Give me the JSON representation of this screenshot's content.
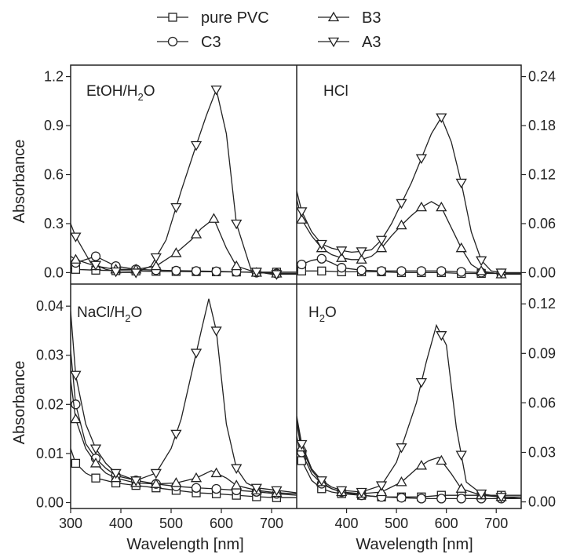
{
  "legend": {
    "items": [
      {
        "label": "pure PVC",
        "marker": "square"
      },
      {
        "label": "B3",
        "marker": "triangle-up"
      },
      {
        "label": "C3",
        "marker": "circle"
      },
      {
        "label": "A3",
        "marker": "triangle-down"
      }
    ]
  },
  "chart_data": [
    {
      "type": "line",
      "panel": "top-left",
      "label": "EtOH/H2O",
      "xlabel": "",
      "ylabel": "Absorbance",
      "xlim": [
        300,
        750
      ],
      "ylim": [
        -0.07,
        1.27
      ],
      "yticks": [
        0.0,
        0.3,
        0.6,
        0.9,
        1.2
      ],
      "ytick_labels": [
        "0.0",
        "0.3",
        "0.6",
        "0.9",
        "1.2"
      ],
      "yaxis_side": "left",
      "series": [
        {
          "name": "pure PVC",
          "marker": "square",
          "x": [
            300,
            310,
            350,
            390,
            430,
            470,
            510,
            550,
            590,
            630,
            670,
            710,
            750
          ],
          "y": [
            0.025,
            0.02,
            0.015,
            0.012,
            0.01,
            0.008,
            0.007,
            0.006,
            0.005,
            0.004,
            0.003,
            0.003,
            0.003
          ],
          "markers_x": [
            310,
            350,
            390,
            430,
            470,
            510,
            550,
            590,
            630,
            670,
            710
          ]
        },
        {
          "name": "C3",
          "marker": "circle",
          "x": [
            300,
            310,
            330,
            350,
            370,
            390,
            430,
            470,
            510,
            550,
            590,
            630,
            670,
            710,
            750
          ],
          "y": [
            0.05,
            0.06,
            0.08,
            0.1,
            0.07,
            0.04,
            0.02,
            0.015,
            0.012,
            0.01,
            0.008,
            0.005,
            0.0,
            -0.005,
            -0.005
          ],
          "markers_x": [
            310,
            350,
            390,
            430,
            470,
            510,
            550,
            590,
            630,
            670,
            710
          ]
        },
        {
          "name": "B3",
          "marker": "triangle-up",
          "x": [
            300,
            310,
            350,
            390,
            430,
            470,
            510,
            540,
            560,
            585,
            610,
            630,
            670,
            710,
            750
          ],
          "y": [
            0.1,
            0.08,
            0.04,
            0.02,
            0.02,
            0.04,
            0.12,
            0.2,
            0.27,
            0.33,
            0.15,
            0.04,
            0.0,
            -0.005,
            -0.005
          ],
          "markers_x": [
            310,
            350,
            390,
            430,
            470,
            510,
            550,
            585,
            630,
            670,
            710
          ]
        },
        {
          "name": "A3",
          "marker": "triangle-down",
          "x": [
            300,
            310,
            340,
            370,
            400,
            430,
            460,
            490,
            520,
            550,
            570,
            590,
            610,
            630,
            660,
            700,
            750
          ],
          "y": [
            0.3,
            0.22,
            0.06,
            0.02,
            0.0,
            0.0,
            0.04,
            0.2,
            0.5,
            0.78,
            0.96,
            1.12,
            0.85,
            0.3,
            0.01,
            -0.01,
            -0.01
          ],
          "markers_x": [
            310,
            350,
            390,
            430,
            470,
            510,
            550,
            590,
            630,
            670,
            710
          ]
        }
      ]
    },
    {
      "type": "line",
      "panel": "top-right",
      "label": "HCl",
      "xlabel": "",
      "ylabel": "",
      "xlim": [
        300,
        750
      ],
      "ylim": [
        -0.014,
        0.254
      ],
      "yticks": [
        0.0,
        0.06,
        0.12,
        0.18,
        0.24
      ],
      "ytick_labels": [
        "0.00",
        "0.06",
        "0.12",
        "0.18",
        "0.24"
      ],
      "yaxis_side": "right",
      "series": [
        {
          "name": "pure PVC",
          "marker": "square",
          "x": [
            300,
            310,
            350,
            390,
            430,
            470,
            510,
            550,
            590,
            630,
            670,
            710,
            750
          ],
          "y": [
            0.003,
            0.002,
            0.002,
            0.001,
            0.001,
            0.001,
            0.0,
            0.0,
            0.0,
            -0.001,
            -0.001,
            -0.001,
            -0.001
          ],
          "markers_x": [
            310,
            350,
            390,
            430,
            470,
            510,
            550,
            590,
            630,
            670,
            710
          ]
        },
        {
          "name": "C3",
          "marker": "circle",
          "x": [
            300,
            310,
            330,
            350,
            370,
            390,
            430,
            470,
            510,
            550,
            590,
            630,
            670,
            710,
            750
          ],
          "y": [
            0.005,
            0.01,
            0.015,
            0.017,
            0.012,
            0.006,
            0.003,
            0.002,
            0.002,
            0.002,
            0.002,
            0.001,
            0.0,
            -0.001,
            -0.001
          ],
          "markers_x": [
            310,
            350,
            390,
            430,
            470,
            510,
            550,
            590,
            630,
            670,
            710
          ]
        },
        {
          "name": "B3",
          "marker": "triangle-up",
          "x": [
            300,
            310,
            330,
            350,
            370,
            390,
            410,
            430,
            450,
            470,
            490,
            510,
            530,
            550,
            570,
            590,
            610,
            630,
            650,
            670,
            690,
            710,
            750
          ],
          "y": [
            0.09,
            0.065,
            0.045,
            0.03,
            0.022,
            0.018,
            0.016,
            0.016,
            0.02,
            0.03,
            0.045,
            0.058,
            0.07,
            0.08,
            0.087,
            0.08,
            0.055,
            0.03,
            0.01,
            0.002,
            0.0,
            -0.002,
            -0.002
          ],
          "markers_x": [
            310,
            350,
            390,
            430,
            470,
            510,
            550,
            590,
            630,
            670,
            710
          ]
        },
        {
          "name": "A3",
          "marker": "triangle-down",
          "x": [
            300,
            310,
            330,
            350,
            370,
            390,
            410,
            430,
            450,
            470,
            490,
            510,
            530,
            550,
            570,
            590,
            610,
            630,
            650,
            670,
            690,
            710,
            750
          ],
          "y": [
            0.1,
            0.075,
            0.05,
            0.035,
            0.03,
            0.027,
            0.025,
            0.026,
            0.028,
            0.04,
            0.06,
            0.085,
            0.11,
            0.14,
            0.17,
            0.19,
            0.16,
            0.11,
            0.05,
            0.015,
            0.002,
            0.0,
            0.0
          ],
          "markers_x": [
            310,
            350,
            390,
            430,
            470,
            510,
            550,
            590,
            630,
            670,
            710
          ]
        }
      ]
    },
    {
      "type": "line",
      "panel": "bottom-left",
      "label": "NaCl/H2O",
      "xlabel": "Wavelength [nm]",
      "ylabel": "Absorbance",
      "xlim": [
        300,
        750
      ],
      "xticks": [
        300,
        400,
        500,
        600,
        700
      ],
      "ylim": [
        -0.0012,
        0.0445
      ],
      "yticks": [
        0.0,
        0.01,
        0.02,
        0.03,
        0.04
      ],
      "ytick_labels": [
        "0.00",
        "0.01",
        "0.02",
        "0.03",
        "0.04"
      ],
      "yaxis_side": "left",
      "series": [
        {
          "name": "pure PVC",
          "marker": "square",
          "x": [
            300,
            310,
            330,
            350,
            370,
            390,
            430,
            470,
            510,
            550,
            590,
            630,
            670,
            710,
            750
          ],
          "y": [
            0.011,
            0.008,
            0.006,
            0.005,
            0.0045,
            0.004,
            0.0035,
            0.003,
            0.0025,
            0.002,
            0.0018,
            0.0015,
            0.0012,
            0.001,
            0.001
          ],
          "markers_x": [
            310,
            350,
            390,
            430,
            470,
            510,
            550,
            590,
            630,
            670,
            710
          ]
        },
        {
          "name": "C3",
          "marker": "circle",
          "x": [
            300,
            310,
            330,
            350,
            370,
            390,
            430,
            470,
            510,
            550,
            590,
            630,
            670,
            710,
            750
          ],
          "y": [
            0.031,
            0.02,
            0.012,
            0.009,
            0.007,
            0.0055,
            0.0045,
            0.0038,
            0.0033,
            0.003,
            0.0028,
            0.0025,
            0.0022,
            0.0018,
            0.0015
          ],
          "markers_x": [
            310,
            350,
            390,
            430,
            470,
            510,
            550,
            590,
            630,
            670,
            710
          ]
        },
        {
          "name": "B3",
          "marker": "triangle-up",
          "x": [
            300,
            310,
            330,
            350,
            370,
            390,
            430,
            470,
            510,
            550,
            580,
            610,
            630,
            670,
            710,
            750
          ],
          "y": [
            0.025,
            0.017,
            0.011,
            0.008,
            0.006,
            0.005,
            0.004,
            0.0038,
            0.004,
            0.005,
            0.0065,
            0.005,
            0.0035,
            0.0025,
            0.002,
            0.0018
          ],
          "markers_x": [
            310,
            350,
            390,
            430,
            470,
            510,
            550,
            590,
            630,
            670,
            710
          ]
        },
        {
          "name": "A3",
          "marker": "triangle-down",
          "x": [
            300,
            310,
            330,
            350,
            370,
            390,
            430,
            470,
            500,
            520,
            540,
            560,
            575,
            590,
            610,
            630,
            650,
            670,
            710,
            750
          ],
          "y": [
            0.039,
            0.026,
            0.016,
            0.011,
            0.008,
            0.006,
            0.0045,
            0.006,
            0.011,
            0.017,
            0.026,
            0.035,
            0.0415,
            0.035,
            0.016,
            0.007,
            0.004,
            0.003,
            0.0025,
            0.002
          ],
          "markers_x": [
            310,
            350,
            390,
            430,
            470,
            510,
            550,
            590,
            630,
            670,
            710
          ]
        }
      ]
    },
    {
      "type": "line",
      "panel": "bottom-right",
      "label": "H2O",
      "xlabel": "Wavelength [nm]",
      "ylabel": "",
      "xlim": [
        300,
        750
      ],
      "xticks": [
        400,
        500,
        600,
        700
      ],
      "ylim": [
        -0.004,
        0.132
      ],
      "yticks": [
        0.0,
        0.03,
        0.06,
        0.09,
        0.12
      ],
      "ytick_labels": [
        "0.00",
        "0.03",
        "0.06",
        "0.09",
        "0.12"
      ],
      "yaxis_side": "right",
      "series": [
        {
          "name": "pure PVC",
          "marker": "square",
          "x": [
            300,
            310,
            330,
            350,
            370,
            390,
            430,
            470,
            510,
            550,
            590,
            630,
            670,
            710,
            750
          ],
          "y": [
            0.04,
            0.025,
            0.013,
            0.008,
            0.006,
            0.005,
            0.004,
            0.003,
            0.003,
            0.003,
            0.004,
            0.004,
            0.004,
            0.004,
            0.004
          ],
          "markers_x": [
            310,
            350,
            390,
            430,
            470,
            510,
            550,
            590,
            630,
            670,
            710
          ]
        },
        {
          "name": "C3",
          "marker": "circle",
          "x": [
            300,
            310,
            330,
            350,
            370,
            390,
            430,
            470,
            510,
            550,
            590,
            630,
            670,
            710,
            750
          ],
          "y": [
            0.048,
            0.03,
            0.017,
            0.011,
            0.008,
            0.006,
            0.004,
            0.003,
            0.0025,
            0.002,
            0.002,
            0.002,
            0.002,
            0.002,
            0.002
          ],
          "markers_x": [
            310,
            350,
            390,
            430,
            470,
            510,
            550,
            590,
            630,
            670,
            710
          ]
        },
        {
          "name": "B3",
          "marker": "triangle-up",
          "x": [
            300,
            310,
            330,
            350,
            370,
            390,
            430,
            470,
            510,
            540,
            565,
            585,
            610,
            630,
            670,
            710,
            750
          ],
          "y": [
            0.05,
            0.033,
            0.019,
            0.012,
            0.008,
            0.006,
            0.005,
            0.006,
            0.012,
            0.02,
            0.025,
            0.027,
            0.017,
            0.008,
            0.004,
            0.003,
            0.002
          ],
          "markers_x": [
            310,
            350,
            390,
            430,
            470,
            510,
            550,
            590,
            630,
            670,
            710
          ]
        },
        {
          "name": "A3",
          "marker": "triangle-down",
          "x": [
            300,
            310,
            330,
            350,
            370,
            390,
            430,
            470,
            500,
            520,
            540,
            560,
            580,
            600,
            620,
            640,
            670,
            710,
            750
          ],
          "y": [
            0.052,
            0.035,
            0.02,
            0.013,
            0.009,
            0.007,
            0.006,
            0.01,
            0.024,
            0.042,
            0.06,
            0.085,
            0.107,
            0.095,
            0.045,
            0.012,
            0.005,
            0.003,
            0.003
          ],
          "markers_x": [
            310,
            350,
            390,
            430,
            470,
            510,
            550,
            590,
            630,
            670,
            710
          ]
        }
      ]
    }
  ]
}
